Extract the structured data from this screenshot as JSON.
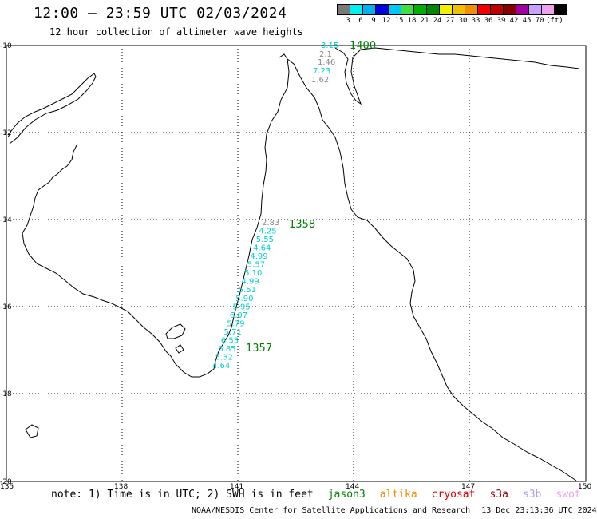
{
  "title": "12:00 – 23:59 UTC 02/03/2024",
  "subtitle": "12 hour collection of altimeter wave heights",
  "scale": {
    "colors": [
      "#7a7a7a",
      "#00f0f0",
      "#00b0f0",
      "#0000e0",
      "#00c8ff",
      "#40e040",
      "#00b000",
      "#008800",
      "#f0f000",
      "#f0c000",
      "#f09000",
      "#f00000",
      "#c00000",
      "#880000",
      "#a000a0",
      "#c8a0ff",
      "#f0a0f0",
      "#000000"
    ],
    "labels": [
      "3",
      "6",
      "9",
      "12",
      "15",
      "18",
      "21",
      "24",
      "27",
      "30",
      "33",
      "36",
      "39",
      "42",
      "45",
      "70",
      "(ft)"
    ]
  },
  "axes": {
    "x_ticks": [
      "135",
      "138",
      "141",
      "144",
      "147",
      "150"
    ],
    "y_ticks": [
      "-10",
      "-12",
      "-14",
      "-16",
      "-18",
      "-20"
    ]
  },
  "passes": [
    {
      "label": "1400",
      "color": "#008000"
    },
    {
      "label": "1358",
      "color": "#008000"
    },
    {
      "label": "1357",
      "color": "#008000"
    }
  ],
  "heights": {
    "north": [
      {
        "value": "3.15",
        "color": "#00d0d0"
      },
      {
        "value": "2.1",
        "color": "#888888"
      },
      {
        "value": "1.46",
        "color": "#888888"
      },
      {
        "value": "7.23",
        "color": "#00d0d0"
      },
      {
        "value": "1.62",
        "color": "#888888"
      }
    ],
    "south": [
      {
        "value": "2.83",
        "color": "#888888"
      },
      {
        "value": "4.25",
        "color": "#00d0d0"
      },
      {
        "value": "5.55",
        "color": "#00d0d0"
      },
      {
        "value": "4.64",
        "color": "#00d0d0"
      },
      {
        "value": "4.99",
        "color": "#00d0d0"
      },
      {
        "value": "5.57",
        "color": "#00d0d0"
      },
      {
        "value": "5.10",
        "color": "#00d0d0"
      },
      {
        "value": "4.99",
        "color": "#00d0d0"
      },
      {
        "value": "5.51",
        "color": "#00d0d0"
      },
      {
        "value": "5.90",
        "color": "#00d0d0"
      },
      {
        "value": "5.95",
        "color": "#00d0d0"
      },
      {
        "value": "6.07",
        "color": "#00d0d0"
      },
      {
        "value": "5.79",
        "color": "#00d0d0"
      },
      {
        "value": "5.71",
        "color": "#00d0d0"
      },
      {
        "value": "6.53",
        "color": "#00d0d0"
      },
      {
        "value": "6.85",
        "color": "#00d0d0"
      },
      {
        "value": "5.32",
        "color": "#00d0d0"
      },
      {
        "value": "4.64",
        "color": "#00d0d0"
      }
    ]
  },
  "footer": {
    "note": "note: 1) Time is in UTC; 2) SWH is in feet",
    "satellites": [
      {
        "name": "jason3",
        "color": "#008000"
      },
      {
        "name": "altika",
        "color": "#f09000"
      },
      {
        "name": "cryosat",
        "color": "#e00000"
      },
      {
        "name": "s3a",
        "color": "#a00000"
      },
      {
        "name": "s3b",
        "color": "#b0a0f0"
      },
      {
        "name": "swot",
        "color": "#f0a0f0"
      }
    ],
    "credit": "NOAA/NESDIS Center for Satellite Applications and Research",
    "timestamp": "13 Dec 23:13:36 UTC 2024"
  }
}
